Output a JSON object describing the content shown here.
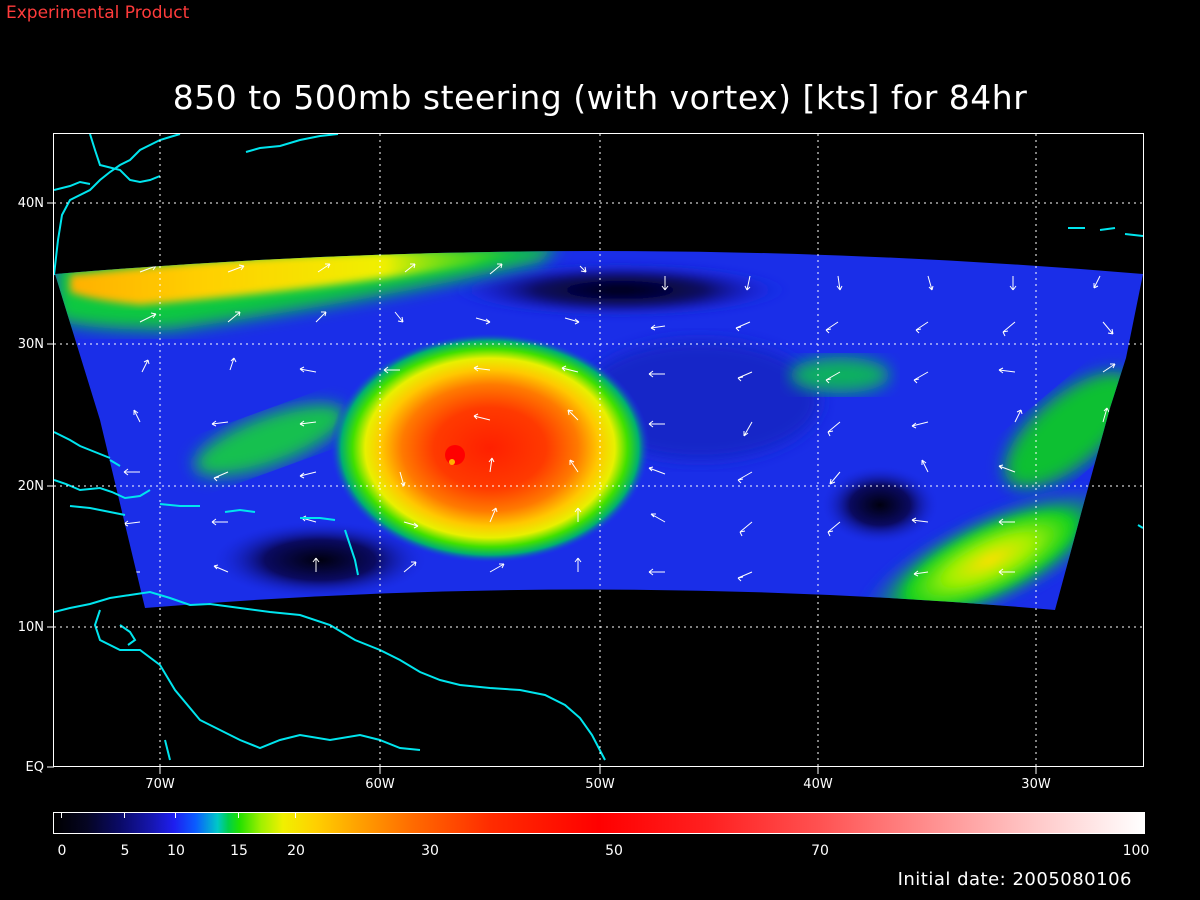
{
  "header": {
    "experimental_label": "Experimental Product",
    "title": "850 to 500mb steering (with vortex) [kts] for 84hr"
  },
  "map": {
    "lat_labels": [
      "40N",
      "30N",
      "20N",
      "10N",
      "EQ"
    ],
    "lon_labels": [
      "70W",
      "60W",
      "50W",
      "40W",
      "30W"
    ],
    "coastline_color": "#00e5ee",
    "grid_color": "#ffffff"
  },
  "colorbar": {
    "labels": [
      "0",
      "5",
      "10",
      "15",
      "20",
      "30",
      "50",
      "70",
      "100"
    ]
  },
  "footer": {
    "initial_date": "Initial date: 2005080106"
  }
}
